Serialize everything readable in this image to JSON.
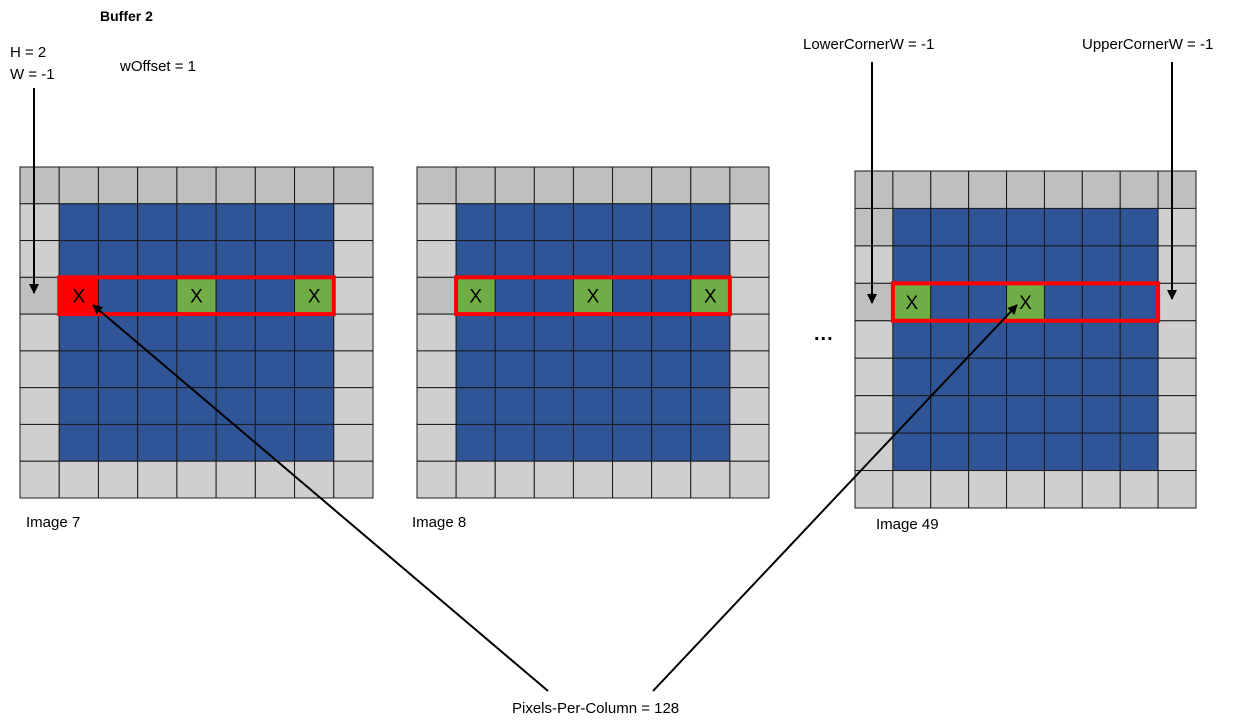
{
  "title": "Buffer 2",
  "labels": {
    "h": "H  = 2",
    "w": "W = -1",
    "w_offset": "wOffset = 1",
    "lower_corner": "LowerCornerW  = -1",
    "upper_corner": "UpperCornerW  = -1",
    "pixels_per_column": "Pixels-Per-Column = 128",
    "ellipsis": "..."
  },
  "colors": {
    "padding": "#d0cece",
    "padding_dark": "#bfbfbf",
    "interior": "#2f5597",
    "selected": "#70ad47",
    "current": "#ff0000",
    "highlight_border": "#ff0000",
    "grid_line": "#1a1a1a"
  },
  "images": [
    {
      "caption": "Image 7",
      "selected_cells": [
        {
          "row": 3,
          "col": 1,
          "mark": "X",
          "state": "current"
        },
        {
          "row": 3,
          "col": 4,
          "mark": "X",
          "state": "selected"
        },
        {
          "row": 3,
          "col": 7,
          "mark": "X",
          "state": "selected"
        }
      ],
      "highlight_row": 3,
      "highlight_cols": [
        1,
        7
      ]
    },
    {
      "caption": "Image 8",
      "selected_cells": [
        {
          "row": 3,
          "col": 1,
          "mark": "X",
          "state": "selected"
        },
        {
          "row": 3,
          "col": 4,
          "mark": "X",
          "state": "selected"
        },
        {
          "row": 3,
          "col": 7,
          "mark": "X",
          "state": "selected"
        }
      ],
      "highlight_row": 3,
      "highlight_cols": [
        1,
        7
      ]
    },
    {
      "caption": "Image 49",
      "selected_cells": [
        {
          "row": 3,
          "col": 1,
          "mark": "X",
          "state": "selected"
        },
        {
          "row": 3,
          "col": 4,
          "mark": "X",
          "state": "selected"
        }
      ],
      "highlight_row": 3,
      "highlight_cols": [
        1,
        7
      ]
    }
  ]
}
